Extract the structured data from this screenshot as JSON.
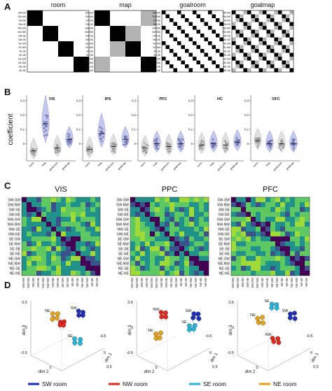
{
  "panels": {
    "A": "A",
    "B": "B",
    "C": "C",
    "D": "D"
  },
  "panel_a": {
    "titles": [
      "room",
      "map",
      "goalroom",
      "goalmap"
    ],
    "row_labels": [
      "SW-SW",
      "SW-NW",
      "SW-SE",
      "SW-NE",
      "NW-SW",
      "NW-NW",
      "NW-SE",
      "NW-NE",
      "SE-SW",
      "SE-NW",
      "SE-SE",
      "SE-NE",
      "NE-SW",
      "NE-NW",
      "NE-SE",
      "NE-NE"
    ]
  },
  "panel_b": {
    "ylabel": "coefficient",
    "regions": [
      "VIS",
      "IPS",
      "PFC",
      "HC",
      "OFC"
    ],
    "conditions": [
      "room",
      "map",
      "goalroom",
      "goalmap"
    ],
    "yticks": [
      "0.3",
      "0.2",
      "0.1",
      "0"
    ],
    "ylim": [
      -0.12,
      0.32
    ],
    "medians": {
      "VIS": [
        -0.05,
        0.14,
        -0.03,
        0.03
      ],
      "IPS": [
        -0.04,
        0.07,
        -0.02,
        0.03
      ],
      "PFC": [
        -0.03,
        0.0,
        -0.02,
        0.0
      ],
      "HC": [
        -0.01,
        0.0,
        -0.01,
        0.01
      ],
      "OFC": [
        0.02,
        0.0,
        0.0,
        0.0
      ]
    },
    "colors": {
      "grey": "#b8b8b8",
      "blue": "#7f86d6",
      "dark": "#555555"
    }
  },
  "panel_c": {
    "titles": [
      "VIS",
      "PPC",
      "PFC"
    ],
    "labels": [
      "SW-SW",
      "SW-NW",
      "SW-SE",
      "SW-NE",
      "NW-SW",
      "NW-NW",
      "NW-SE",
      "NW-NE",
      "SE-SW",
      "SE-NW",
      "SE-SE",
      "SE-NE",
      "NE-SW",
      "NE-NW",
      "NE-SE",
      "NE-NE"
    ]
  },
  "panel_d": {
    "axis_labels": {
      "dim1": "dim 1",
      "dim2": "dim 2",
      "dim3": "dim 3"
    },
    "ticks": {
      "t0": "0",
      "tm05": "-0.5",
      "t05": "0.5"
    },
    "cluster_labels": [
      "SW",
      "NW",
      "SE",
      "NE"
    ],
    "legend": [
      {
        "label": "SW room",
        "color": "#1f2fb5"
      },
      {
        "label": "NW room",
        "color": "#e0291e"
      },
      {
        "label": "SE room",
        "color": "#27b4d8"
      },
      {
        "label": "NE room",
        "color": "#e5a31a"
      }
    ]
  }
}
